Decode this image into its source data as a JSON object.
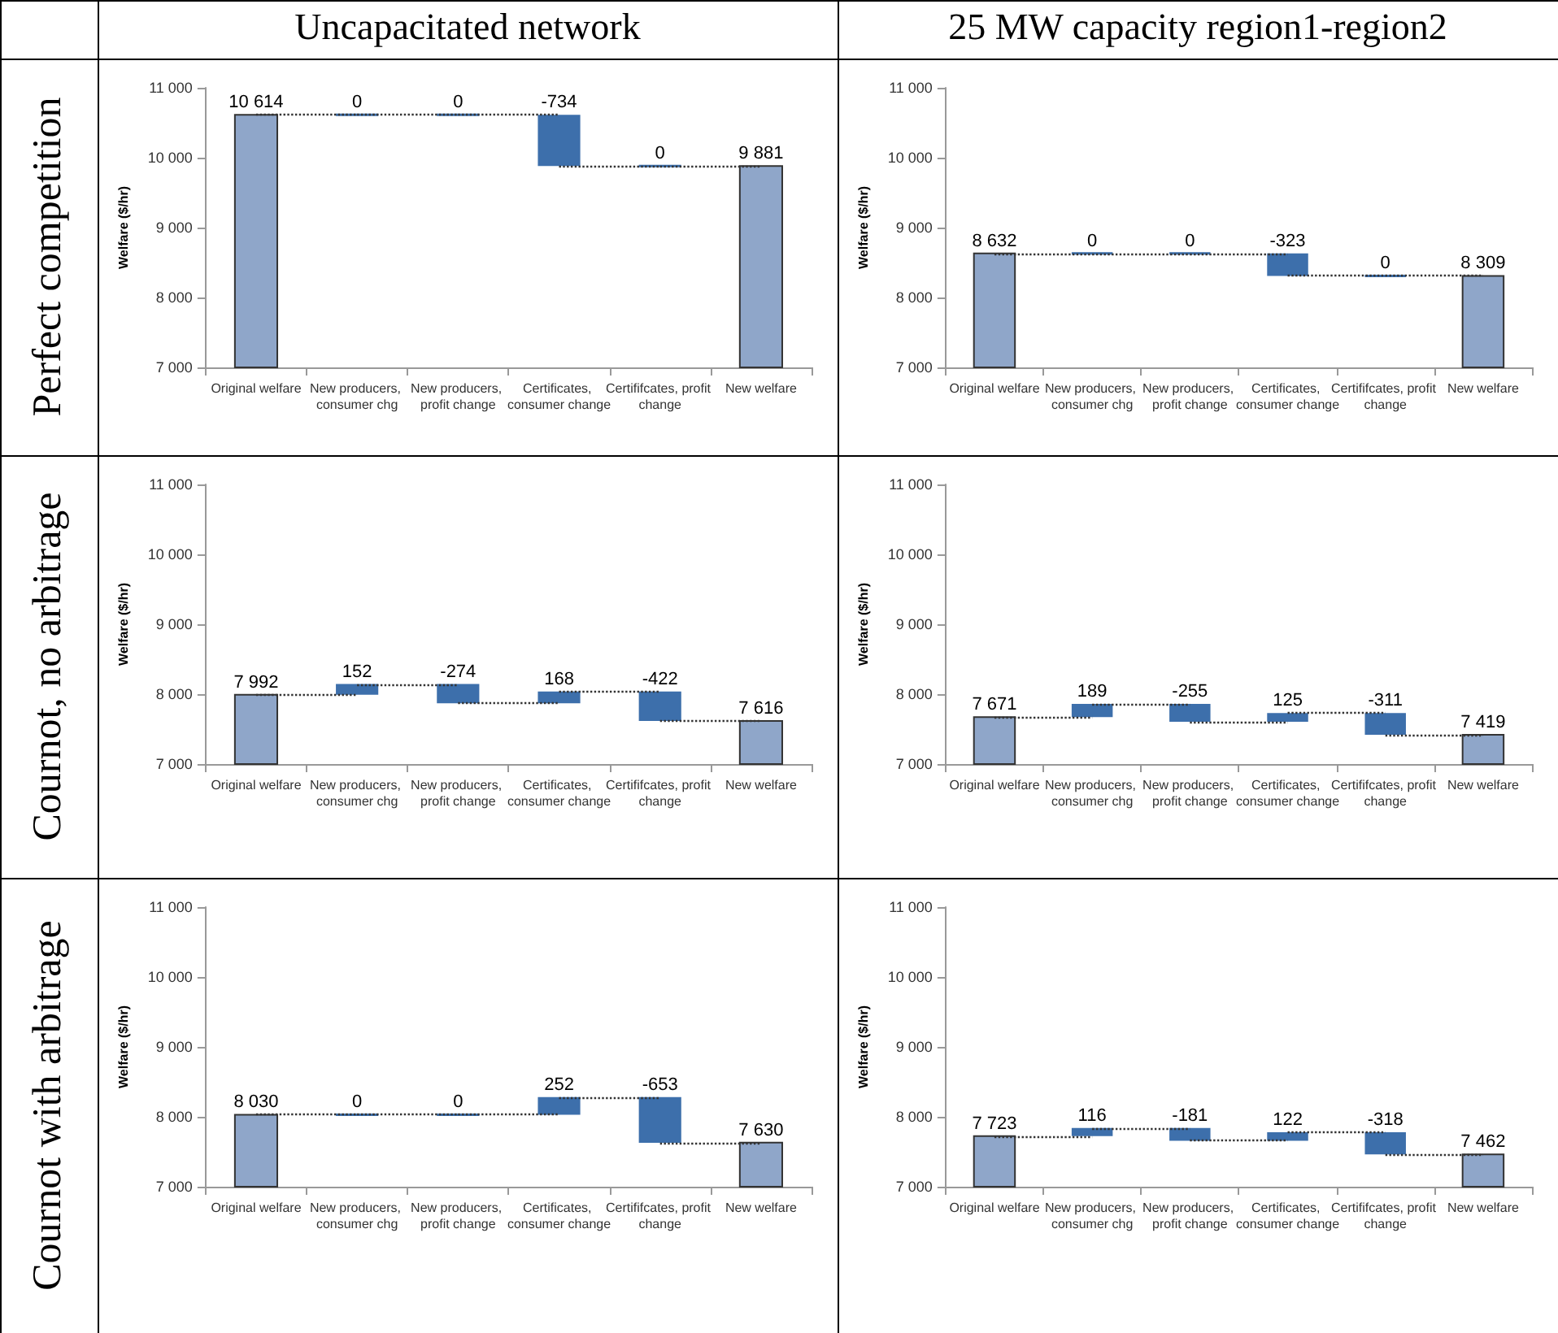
{
  "chart_data": [
    {
      "type": "bar",
      "title": "Uncapacitated network",
      "annotations": [
        "Perfect competition"
      ],
      "ylabel": "Welfare ($/hr)",
      "categories": [
        "Original welfare",
        "New producers, consumer chg",
        "New producers, profit change",
        "Certificates, consumer change",
        "Certififcates, profit change",
        "New welfare"
      ],
      "values": [
        10614,
        0,
        0,
        -734,
        0,
        9881
      ],
      "base": [
        null,
        10614,
        10614,
        10614,
        9880,
        null
      ],
      "value_labels": [
        "10 614",
        "0",
        "0",
        "-734",
        "0",
        "9 881"
      ],
      "colors": [
        "#8fa6c9",
        "#3d6fab",
        "#3d6fab",
        "#3d6fab",
        "#3d6fab",
        "#8fa6c9"
      ],
      "ylim": [
        7000,
        11000
      ],
      "yticks": [
        {
          "value": 7000,
          "label": "7 000"
        },
        {
          "value": 8000,
          "label": "8 000"
        },
        {
          "value": 9000,
          "label": "9 000"
        },
        {
          "value": 10000,
          "label": "10 000"
        },
        {
          "value": 11000,
          "label": "11 000"
        }
      ]
    },
    {
      "type": "bar",
      "title": "25 MW capacity region1-region2",
      "ylabel": "Welfare ($/hr)",
      "categories": [
        "Original welfare",
        "New producers, consumer chg",
        "New producers, profit change",
        "Certificates, consumer change",
        "Certififcates, profit change",
        "New welfare"
      ],
      "values": [
        8632,
        0,
        0,
        -323,
        0,
        8309
      ],
      "base": [
        null,
        8632,
        8632,
        8632,
        8309,
        null
      ],
      "value_labels": [
        "8 632",
        "0",
        "0",
        "-323",
        "0",
        "8 309"
      ],
      "colors": [
        "#8fa6c9",
        "#3d6fab",
        "#3d6fab",
        "#3d6fab",
        "#3d6fab",
        "#8fa6c9"
      ],
      "ylim": [
        7000,
        11000
      ],
      "yticks": [
        {
          "value": 7000,
          "label": "7 000"
        },
        {
          "value": 8000,
          "label": "8 000"
        },
        {
          "value": 9000,
          "label": "9 000"
        },
        {
          "value": 10000,
          "label": "10 000"
        },
        {
          "value": 11000,
          "label": "11 000"
        }
      ]
    },
    {
      "type": "bar",
      "annotations": [
        "Cournot, no arbitrage"
      ],
      "ylabel": "Welfare ($/hr)",
      "categories": [
        "Original welfare",
        "New producers, consumer chg",
        "New producers, profit change",
        "Certificates, consumer change",
        "Certififcates, profit change",
        "New welfare"
      ],
      "values": [
        7992,
        152,
        -274,
        168,
        -422,
        7616
      ],
      "base": [
        null,
        7992,
        8144,
        7870,
        8038,
        null
      ],
      "value_labels": [
        "7 992",
        "152",
        "-274",
        "168",
        "-422",
        "7 616"
      ],
      "colors": [
        "#8fa6c9",
        "#3d6fab",
        "#3d6fab",
        "#3d6fab",
        "#3d6fab",
        "#8fa6c9"
      ],
      "ylim": [
        7000,
        11000
      ],
      "yticks": [
        {
          "value": 7000,
          "label": "7 000"
        },
        {
          "value": 8000,
          "label": "8 000"
        },
        {
          "value": 9000,
          "label": "9 000"
        },
        {
          "value": 10000,
          "label": "10 000"
        },
        {
          "value": 11000,
          "label": "11 000"
        }
      ]
    },
    {
      "type": "bar",
      "ylabel": "Welfare ($/hr)",
      "categories": [
        "Original welfare",
        "New producers, consumer chg",
        "New producers, profit change",
        "Certificates, consumer change",
        "Certififcates, profit change",
        "New welfare"
      ],
      "values": [
        7671,
        189,
        -255,
        125,
        -311,
        7419
      ],
      "base": [
        null,
        7671,
        7860,
        7605,
        7730,
        null
      ],
      "value_labels": [
        "7 671",
        "189",
        "-255",
        "125",
        "-311",
        "7 419"
      ],
      "colors": [
        "#8fa6c9",
        "#3d6fab",
        "#3d6fab",
        "#3d6fab",
        "#3d6fab",
        "#8fa6c9"
      ],
      "ylim": [
        7000,
        11000
      ],
      "yticks": [
        {
          "value": 7000,
          "label": "7 000"
        },
        {
          "value": 8000,
          "label": "8 000"
        },
        {
          "value": 9000,
          "label": "9 000"
        },
        {
          "value": 10000,
          "label": "10 000"
        },
        {
          "value": 11000,
          "label": "11 000"
        }
      ]
    },
    {
      "type": "bar",
      "annotations": [
        "Cournot with arbitrage"
      ],
      "ylabel": "Welfare ($/hr)",
      "categories": [
        "Original welfare",
        "New producers, consumer chg",
        "New producers, profit change",
        "Certificates, consumer change",
        "Certififcates, profit change",
        "New welfare"
      ],
      "values": [
        8030,
        0,
        0,
        252,
        -653,
        7630
      ],
      "base": [
        null,
        8030,
        8030,
        8030,
        8282,
        null
      ],
      "value_labels": [
        "8 030",
        "0",
        "0",
        "252",
        "-653",
        "7 630"
      ],
      "colors": [
        "#8fa6c9",
        "#3d6fab",
        "#3d6fab",
        "#3d6fab",
        "#3d6fab",
        "#8fa6c9"
      ],
      "ylim": [
        7000,
        11000
      ],
      "yticks": [
        {
          "value": 7000,
          "label": "7 000"
        },
        {
          "value": 8000,
          "label": "8 000"
        },
        {
          "value": 9000,
          "label": "9 000"
        },
        {
          "value": 10000,
          "label": "10 000"
        },
        {
          "value": 11000,
          "label": "11 000"
        }
      ]
    },
    {
      "type": "bar",
      "ylabel": "Welfare ($/hr)",
      "categories": [
        "Original welfare",
        "New producers, consumer chg",
        "New producers, profit change",
        "Certificates, consumer change",
        "Certififcates, profit change",
        "New welfare"
      ],
      "values": [
        7723,
        116,
        -181,
        122,
        -318,
        7462
      ],
      "base": [
        null,
        7723,
        7839,
        7658,
        7780,
        null
      ],
      "value_labels": [
        "7 723",
        "116",
        "-181",
        "122",
        "-318",
        "7 462"
      ],
      "colors": [
        "#8fa6c9",
        "#3d6fab",
        "#3d6fab",
        "#3d6fab",
        "#3d6fab",
        "#8fa6c9"
      ],
      "ylim": [
        7000,
        11000
      ],
      "yticks": [
        {
          "value": 7000,
          "label": "7 000"
        },
        {
          "value": 8000,
          "label": "8 000"
        },
        {
          "value": 9000,
          "label": "9 000"
        },
        {
          "value": 10000,
          "label": "10 000"
        },
        {
          "value": 11000,
          "label": "11 000"
        }
      ]
    }
  ]
}
